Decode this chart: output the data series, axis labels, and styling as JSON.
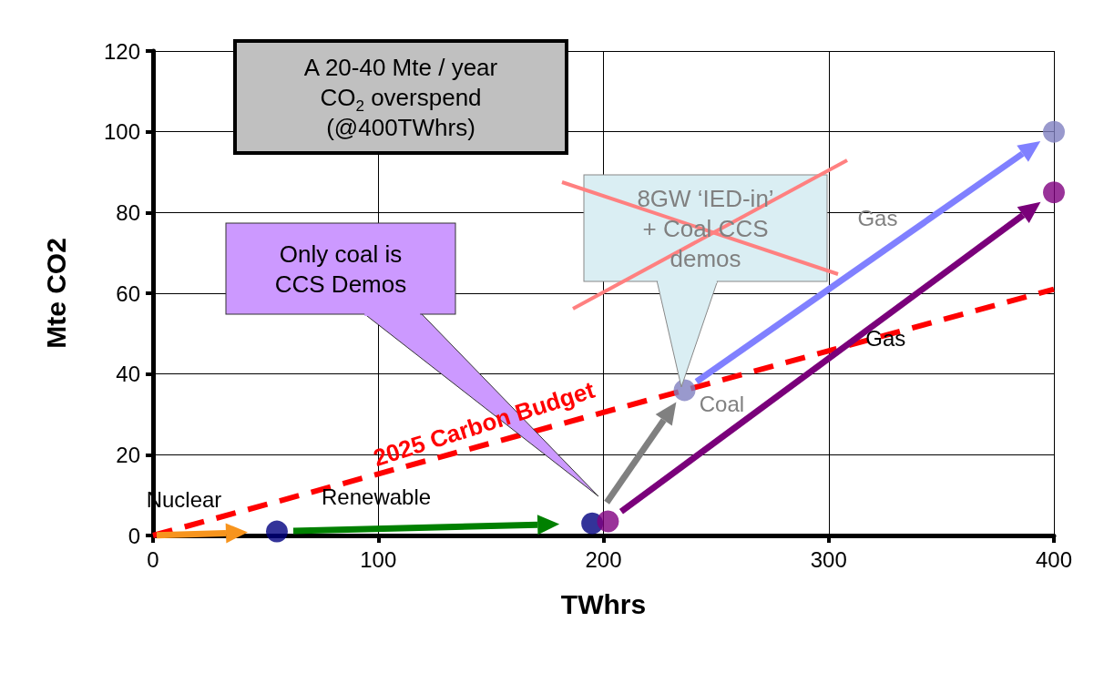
{
  "chart_data": {
    "type": "scatter",
    "xlabel": "TWhrs",
    "ylabel": "Mte CO2",
    "xlim": [
      0,
      400
    ],
    "xticks": [
      0,
      100,
      200,
      300,
      400
    ],
    "ylim": [
      0,
      120
    ],
    "yticks": [
      0,
      20,
      40,
      60,
      80,
      100,
      120
    ],
    "grid": true,
    "legend": false,
    "marker": "circle",
    "series": [
      {
        "name": "2025 Carbon Budget",
        "type": "line",
        "line_style": "dashed",
        "marker": "none",
        "color": "#ff0000",
        "x": [
          0,
          400
        ],
        "values": [
          0,
          61
        ]
      },
      {
        "x": [
          55,
          195,
          202,
          236,
          400,
          400
        ],
        "values": [
          1,
          3,
          3.5,
          36,
          100,
          85
        ],
        "colors": [
          "#000080",
          "#000080",
          "#800080",
          "#8080c0",
          "#8080c0",
          "#800080"
        ]
      }
    ],
    "annotations": [
      "A 20-40 Mte / year CO$_{2}$ overspend (@400TWhrs)",
      "Only coal is CCS Demos",
      "8GW ‘IED-in’ + Coal CCS demos",
      "Nuclear",
      "Renewable",
      "Coal",
      "Gas",
      "Gas"
    ]
  }
}
